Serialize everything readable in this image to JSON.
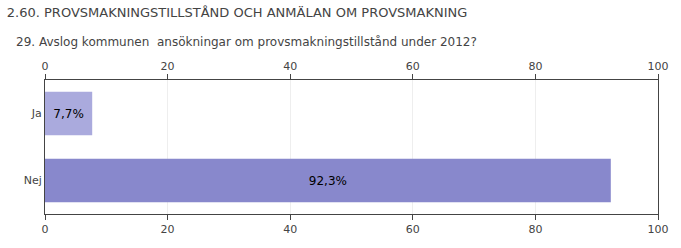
{
  "chart_data": {
    "type": "bar",
    "orientation": "horizontal",
    "title": "2.60. PROVSMAKNINGSTILLSTÅND OCH ANMÄLAN OM PROVSMAKNING",
    "subtitle": "29. Avslog kommunen  ansökningar om provsmakningstillstånd under 2012?",
    "categories": [
      "Nej",
      "Ja"
    ],
    "values": [
      92.3,
      7.7
    ],
    "value_labels": [
      "92,3%",
      "7,7%"
    ],
    "data_labels": true,
    "colors": [
      "#8888cc",
      "#aaaadd"
    ],
    "xlim": [
      0,
      100
    ],
    "xticks": [
      0,
      20,
      40,
      60,
      80,
      100
    ],
    "grid": true
  }
}
